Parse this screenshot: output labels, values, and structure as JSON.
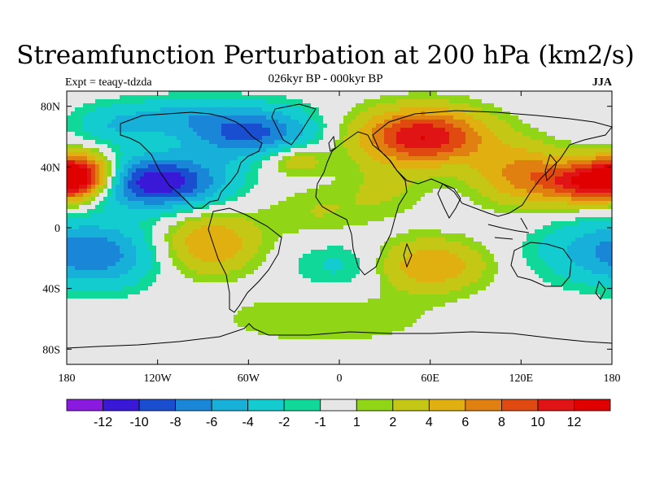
{
  "chart_data": {
    "type": "heatmap",
    "title": "Streamfunction Perturbation at 200 hPa (km2/s)",
    "left_label": "Expt = teaqy-tdzda",
    "center_label": "026kyr BP - 000kyr BP",
    "right_label": "JJA",
    "x_ticks": [
      "180",
      "120W",
      "60W",
      "0",
      "60E",
      "120E",
      "180"
    ],
    "y_ticks": [
      "80N",
      "40N",
      "0",
      "40S",
      "80S"
    ],
    "xlim": [
      -180,
      180
    ],
    "ylim": [
      -90,
      90
    ],
    "x_tick_values": [
      -180,
      -120,
      -60,
      0,
      60,
      120,
      180
    ],
    "y_tick_values": [
      80,
      40,
      0,
      -40,
      -80
    ],
    "levels": [
      -12,
      -10,
      -8,
      -6,
      -4,
      -2,
      -1,
      1,
      2,
      4,
      6,
      8,
      10,
      12
    ],
    "colorbar_labels": [
      "-12",
      "-10",
      "-8",
      "-6",
      "-4",
      "-2",
      "-1",
      "1",
      "2",
      "4",
      "6",
      "8",
      "10",
      "12"
    ],
    "colors": [
      "#8a1ae0",
      "#3a18d8",
      "#1a4ed0",
      "#1a86d8",
      "#16b0d8",
      "#12ccd0",
      "#10d898",
      "#e6e6e6",
      "#90d616",
      "#c4c814",
      "#e0b010",
      "#e08010",
      "#e04a10",
      "#e01414",
      "#e00000"
    ],
    "centers": [
      {
        "lon": -120,
        "lat": 30,
        "value": -12,
        "sx": 30,
        "sy": 12
      },
      {
        "lon": -60,
        "lat": 63,
        "value": -9,
        "sx": 30,
        "sy": 12
      },
      {
        "lon": -145,
        "lat": 68,
        "value": -4,
        "sx": 22,
        "sy": 10
      },
      {
        "lon": -155,
        "lat": -18,
        "value": -6,
        "sx": 25,
        "sy": 15
      },
      {
        "lon": 165,
        "lat": -15,
        "value": -4,
        "sx": 28,
        "sy": 15
      },
      {
        "lon": 0,
        "lat": -25,
        "value": -2.5,
        "sx": 22,
        "sy": 12
      },
      {
        "lon": -105,
        "lat": 75,
        "value": -3,
        "sx": 20,
        "sy": 8
      },
      {
        "lon": 55,
        "lat": 60,
        "value": 12,
        "sx": 30,
        "sy": 13
      },
      {
        "lon": -170,
        "lat": 35,
        "value": 12,
        "sx": 16,
        "sy": 10
      },
      {
        "lon": 165,
        "lat": 30,
        "value": 11,
        "sx": 22,
        "sy": 10
      },
      {
        "lon": 120,
        "lat": 35,
        "value": 6,
        "sx": 22,
        "sy": 14
      },
      {
        "lon": -85,
        "lat": -10,
        "value": 6,
        "sx": 22,
        "sy": 14
      },
      {
        "lon": 60,
        "lat": -25,
        "value": 6,
        "sx": 25,
        "sy": 12
      },
      {
        "lon": -30,
        "lat": 45,
        "value": 4,
        "sx": 15,
        "sy": 7
      },
      {
        "lon": -15,
        "lat": 10,
        "value": 2,
        "sx": 25,
        "sy": 12
      },
      {
        "lon": -10,
        "lat": -60,
        "value": 2,
        "sx": 50,
        "sy": 12
      },
      {
        "lon": 30,
        "lat": 25,
        "value": 2,
        "sx": 20,
        "sy": 12
      }
    ]
  }
}
